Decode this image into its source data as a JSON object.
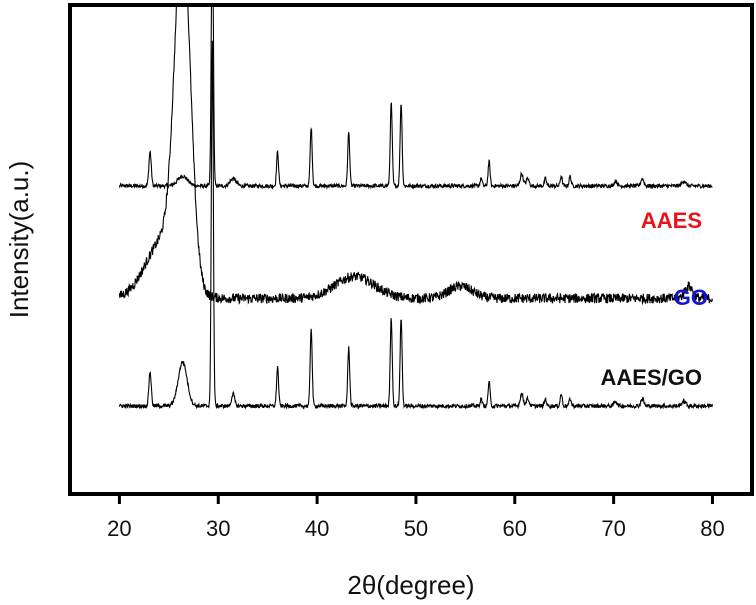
{
  "chart_data": {
    "type": "line",
    "title": "",
    "xlabel": "2θ(degree)",
    "ylabel": "Intensity(a.u.)",
    "xlim": [
      15,
      84
    ],
    "xticks": [
      20,
      30,
      40,
      50,
      60,
      70,
      80
    ],
    "x_range": [
      20,
      80
    ],
    "grid": false,
    "legend": "none; series labels printed at right beside each trace",
    "y_ticks": "none",
    "series": [
      {
        "name": "AAES",
        "label_color": "#e8141b",
        "line_color": "#000000",
        "baseline": 0.63,
        "noise": 0.004,
        "peaks": [
          {
            "x": 23.1,
            "height": 0.07,
            "width": 0.12
          },
          {
            "x": 26.4,
            "height": 0.02,
            "width": 0.5
          },
          {
            "x": 29.4,
            "height": 0.6,
            "width": 0.1
          },
          {
            "x": 31.5,
            "height": 0.015,
            "width": 0.3
          },
          {
            "x": 36.0,
            "height": 0.07,
            "width": 0.1
          },
          {
            "x": 39.4,
            "height": 0.12,
            "width": 0.1
          },
          {
            "x": 43.2,
            "height": 0.11,
            "width": 0.1
          },
          {
            "x": 47.5,
            "height": 0.17,
            "width": 0.1
          },
          {
            "x": 48.5,
            "height": 0.17,
            "width": 0.1
          },
          {
            "x": 56.6,
            "height": 0.015,
            "width": 0.1
          },
          {
            "x": 57.4,
            "height": 0.05,
            "width": 0.1
          },
          {
            "x": 60.7,
            "height": 0.025,
            "width": 0.15
          },
          {
            "x": 61.3,
            "height": 0.015,
            "width": 0.15
          },
          {
            "x": 63.1,
            "height": 0.015,
            "width": 0.1
          },
          {
            "x": 64.7,
            "height": 0.02,
            "width": 0.1
          },
          {
            "x": 65.6,
            "height": 0.02,
            "width": 0.1
          },
          {
            "x": 70.2,
            "height": 0.01,
            "width": 0.15
          },
          {
            "x": 72.9,
            "height": 0.015,
            "width": 0.15
          },
          {
            "x": 77.1,
            "height": 0.01,
            "width": 0.2
          }
        ]
      },
      {
        "name": "GO",
        "label_color": "#1414d2",
        "line_color": "#000000",
        "baseline": 0.4,
        "noise": 0.01,
        "peaks": [
          {
            "x": 26.4,
            "height": 0.68,
            "width": 0.8
          },
          {
            "x": 24.5,
            "height": 0.12,
            "width": 1.8
          },
          {
            "x": 43.8,
            "height": 0.045,
            "width": 2.0
          },
          {
            "x": 54.5,
            "height": 0.025,
            "width": 1.2
          },
          {
            "x": 77.6,
            "height": 0.025,
            "width": 0.4
          }
        ]
      },
      {
        "name": "AAES/GO",
        "label_color": "#111111",
        "line_color": "#000000",
        "baseline": 0.18,
        "noise": 0.004,
        "peaks": [
          {
            "x": 23.1,
            "height": 0.07,
            "width": 0.12
          },
          {
            "x": 26.4,
            "height": 0.09,
            "width": 0.45
          },
          {
            "x": 29.4,
            "height": 0.75,
            "width": 0.1
          },
          {
            "x": 31.5,
            "height": 0.025,
            "width": 0.15
          },
          {
            "x": 36.0,
            "height": 0.08,
            "width": 0.1
          },
          {
            "x": 39.4,
            "height": 0.16,
            "width": 0.1
          },
          {
            "x": 43.2,
            "height": 0.12,
            "width": 0.1
          },
          {
            "x": 47.5,
            "height": 0.18,
            "width": 0.1
          },
          {
            "x": 48.5,
            "height": 0.18,
            "width": 0.1
          },
          {
            "x": 56.6,
            "height": 0.015,
            "width": 0.1
          },
          {
            "x": 57.4,
            "height": 0.05,
            "width": 0.1
          },
          {
            "x": 60.7,
            "height": 0.025,
            "width": 0.15
          },
          {
            "x": 61.3,
            "height": 0.015,
            "width": 0.15
          },
          {
            "x": 63.1,
            "height": 0.015,
            "width": 0.1
          },
          {
            "x": 64.7,
            "height": 0.025,
            "width": 0.1
          },
          {
            "x": 65.6,
            "height": 0.015,
            "width": 0.1
          },
          {
            "x": 70.2,
            "height": 0.01,
            "width": 0.15
          },
          {
            "x": 72.9,
            "height": 0.015,
            "width": 0.15
          },
          {
            "x": 77.1,
            "height": 0.01,
            "width": 0.2
          }
        ]
      }
    ]
  }
}
